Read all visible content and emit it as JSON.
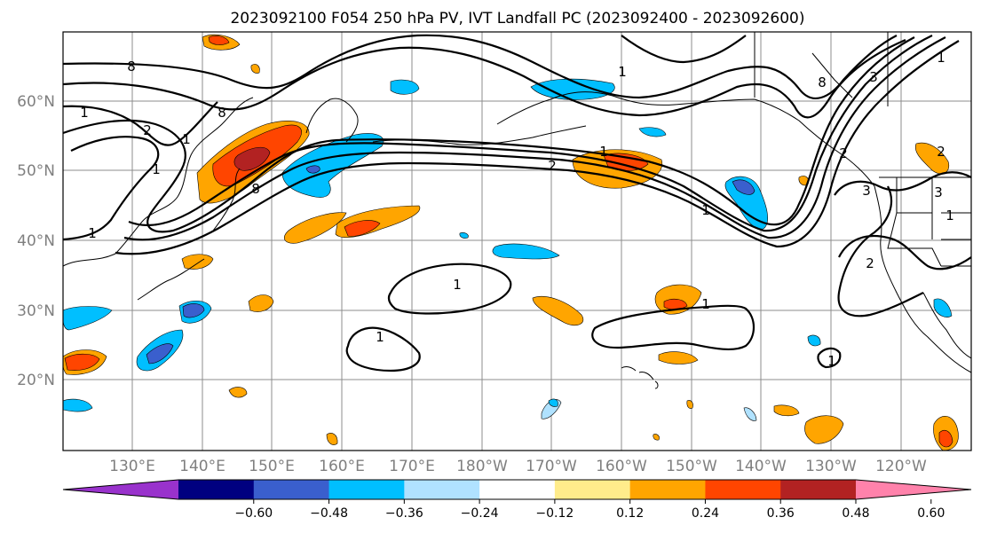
{
  "title": "2023092100 F054 250 hPa PV, IVT Landfall PC (2023092400 - 2023092600)",
  "map": {
    "lat_labels": [
      "60°N",
      "50°N",
      "40°N",
      "30°N",
      "20°N"
    ],
    "lon_labels": [
      "130°E",
      "140°E",
      "150°E",
      "160°E",
      "170°E",
      "180°W",
      "170°W",
      "160°W",
      "150°W",
      "140°W",
      "130°W",
      "120°W"
    ],
    "grid": true
  },
  "contour_labels": [
    "8",
    "1",
    "2",
    "1",
    "1",
    "8",
    "8",
    "1",
    "1",
    "1",
    "1",
    "1",
    "2",
    "1",
    "1",
    "1",
    "1",
    "8",
    "2",
    "3",
    "3",
    "2",
    "1",
    "2",
    "3"
  ],
  "colorbar": {
    "tick_labels": [
      "−0.60",
      "−0.48",
      "−0.36",
      "−0.24",
      "−0.12",
      "0.12",
      "0.24",
      "0.36",
      "0.48",
      "0.60"
    ],
    "colors": [
      "#9932cc",
      "#000080",
      "#3a5fcd",
      "#00bfff",
      "#b0e2ff",
      "#ffffff",
      "#ffec8b",
      "#ffa500",
      "#ff4500",
      "#b22222",
      "#ff82ab"
    ]
  }
}
